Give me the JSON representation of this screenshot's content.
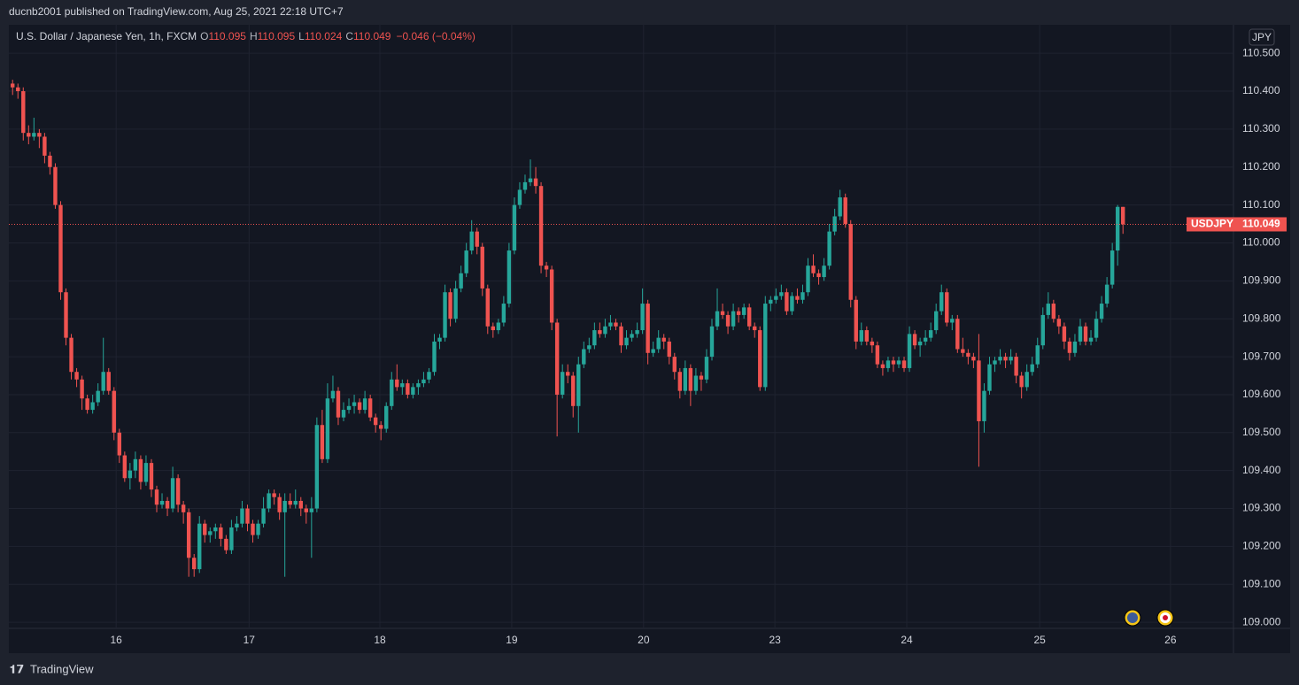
{
  "publisher": "ducnb2001 published on TradingView.com, Aug 25, 2021 22:18 UTC+7",
  "footer": "TradingView",
  "chart_data": {
    "type": "candlestick",
    "title": "U.S. Dollar / Japanese Yen, 1h, FXCM",
    "symbol": "USDJPY",
    "currency": "JPY",
    "ohlc_letters": [
      "O",
      "H",
      "L",
      "C"
    ],
    "change": "−0.046 (−0.04%)",
    "up_color": "#26a69a",
    "down_color": "#ef5350",
    "grid": true,
    "ylim": [
      108.984,
      110.575
    ],
    "yticks": [
      {
        "value": 109.0,
        "label": "109.000"
      },
      {
        "value": 109.1,
        "label": "109.100"
      },
      {
        "value": 109.2,
        "label": "109.200"
      },
      {
        "value": 109.3,
        "label": "109.300"
      },
      {
        "value": 109.4,
        "label": "109.400"
      },
      {
        "value": 109.5,
        "label": "109.500"
      },
      {
        "value": 109.6,
        "label": "109.600"
      },
      {
        "value": 109.7,
        "label": "109.700"
      },
      {
        "value": 109.8,
        "label": "109.800"
      },
      {
        "value": 109.9,
        "label": "109.900"
      },
      {
        "value": 110.0,
        "label": "110.000"
      },
      {
        "value": 110.1,
        "label": "110.100"
      },
      {
        "value": 110.2,
        "label": "110.200"
      },
      {
        "value": 110.3,
        "label": "110.300"
      },
      {
        "value": 110.4,
        "label": "110.400"
      },
      {
        "value": 110.5,
        "label": "110.500"
      }
    ],
    "xlim": [
      -0.7,
      228.7
    ],
    "xticks": [
      {
        "value": 19.4,
        "label": "16"
      },
      {
        "value": 44.3,
        "label": "17"
      },
      {
        "value": 68.8,
        "label": "18"
      },
      {
        "value": 93.5,
        "label": "19"
      },
      {
        "value": 118.2,
        "label": "20"
      },
      {
        "value": 142.8,
        "label": "23"
      },
      {
        "value": 167.5,
        "label": "24"
      },
      {
        "value": 192.4,
        "label": "25"
      },
      {
        "value": 216.9,
        "label": "26"
      }
    ],
    "candles": [
      [
        110.42,
        110.43,
        110.39,
        110.41
      ],
      [
        110.41,
        110.42,
        110.38,
        110.4
      ],
      [
        110.4,
        110.41,
        110.27,
        110.29
      ],
      [
        110.29,
        110.31,
        110.26,
        110.28
      ],
      [
        110.28,
        110.33,
        110.27,
        110.29
      ],
      [
        110.29,
        110.3,
        110.25,
        110.28
      ],
      [
        110.28,
        110.29,
        110.21,
        110.23
      ],
      [
        110.23,
        110.24,
        110.18,
        110.2
      ],
      [
        110.2,
        110.21,
        110.09,
        110.1
      ],
      [
        110.1,
        110.11,
        109.85,
        109.87
      ],
      [
        109.87,
        109.88,
        109.73,
        109.75
      ],
      [
        109.75,
        109.76,
        109.64,
        109.66
      ],
      [
        109.66,
        109.67,
        109.62,
        109.64
      ],
      [
        109.64,
        109.65,
        109.56,
        109.59
      ],
      [
        109.59,
        109.6,
        109.55,
        109.56
      ],
      [
        109.56,
        109.6,
        109.55,
        109.58
      ],
      [
        109.58,
        109.63,
        109.57,
        109.61
      ],
      [
        109.61,
        109.75,
        109.6,
        109.66
      ],
      [
        109.66,
        109.67,
        109.6,
        109.61
      ],
      [
        109.61,
        109.62,
        109.48,
        109.5
      ],
      [
        109.5,
        109.51,
        109.42,
        109.44
      ],
      [
        109.44,
        109.45,
        109.37,
        109.38
      ],
      [
        109.38,
        109.42,
        109.35,
        109.4
      ],
      [
        109.4,
        109.45,
        109.38,
        109.43
      ],
      [
        109.43,
        109.44,
        109.35,
        109.37
      ],
      [
        109.37,
        109.44,
        109.36,
        109.42
      ],
      [
        109.42,
        109.43,
        109.33,
        109.35
      ],
      [
        109.35,
        109.36,
        109.29,
        109.31
      ],
      [
        109.31,
        109.34,
        109.3,
        109.32
      ],
      [
        109.32,
        109.33,
        109.28,
        109.3
      ],
      [
        109.3,
        109.41,
        109.29,
        109.38
      ],
      [
        109.38,
        109.39,
        109.29,
        109.31
      ],
      [
        109.31,
        109.32,
        109.26,
        109.29
      ],
      [
        109.29,
        109.3,
        109.12,
        109.17
      ],
      [
        109.17,
        109.18,
        109.12,
        109.14
      ],
      [
        109.14,
        109.28,
        109.13,
        109.26
      ],
      [
        109.26,
        109.27,
        109.21,
        109.23
      ],
      [
        109.23,
        109.25,
        109.21,
        109.24
      ],
      [
        109.24,
        109.26,
        109.22,
        109.25
      ],
      [
        109.25,
        109.26,
        109.2,
        109.22
      ],
      [
        109.22,
        109.23,
        109.18,
        109.19
      ],
      [
        109.19,
        109.27,
        109.18,
        109.25
      ],
      [
        109.25,
        109.28,
        109.24,
        109.26
      ],
      [
        109.26,
        109.32,
        109.25,
        109.3
      ],
      [
        109.3,
        109.31,
        109.24,
        109.26
      ],
      [
        109.26,
        109.27,
        109.21,
        109.23
      ],
      [
        109.23,
        109.27,
        109.22,
        109.26
      ],
      [
        109.26,
        109.33,
        109.25,
        109.3
      ],
      [
        109.3,
        109.35,
        109.29,
        109.34
      ],
      [
        109.34,
        109.35,
        109.31,
        109.33
      ],
      [
        109.33,
        109.34,
        109.27,
        109.29
      ],
      [
        109.29,
        109.34,
        109.12,
        109.32
      ],
      [
        109.32,
        109.34,
        109.3,
        109.31
      ],
      [
        109.31,
        109.35,
        109.3,
        109.32
      ],
      [
        109.32,
        109.33,
        109.28,
        109.3
      ],
      [
        109.3,
        109.31,
        109.26,
        109.29
      ],
      [
        109.29,
        109.33,
        109.17,
        109.3
      ],
      [
        109.3,
        109.54,
        109.29,
        109.52
      ],
      [
        109.52,
        109.56,
        109.42,
        109.43
      ],
      [
        109.43,
        109.63,
        109.42,
        109.59
      ],
      [
        109.59,
        109.65,
        109.58,
        109.61
      ],
      [
        109.61,
        109.62,
        109.52,
        109.54
      ],
      [
        109.54,
        109.58,
        109.53,
        109.56
      ],
      [
        109.56,
        109.59,
        109.55,
        109.57
      ],
      [
        109.57,
        109.6,
        109.55,
        109.58
      ],
      [
        109.58,
        109.59,
        109.55,
        109.56
      ],
      [
        109.56,
        109.61,
        109.55,
        109.59
      ],
      [
        109.59,
        109.6,
        109.53,
        109.54
      ],
      [
        109.54,
        109.55,
        109.5,
        109.52
      ],
      [
        109.52,
        109.53,
        109.48,
        109.51
      ],
      [
        109.51,
        109.58,
        109.5,
        109.57
      ],
      [
        109.57,
        109.66,
        109.56,
        109.64
      ],
      [
        109.64,
        109.68,
        109.61,
        109.62
      ],
      [
        109.62,
        109.64,
        109.6,
        109.63
      ],
      [
        109.63,
        109.64,
        109.59,
        109.6
      ],
      [
        109.6,
        109.63,
        109.59,
        109.62
      ],
      [
        109.62,
        109.64,
        109.6,
        109.63
      ],
      [
        109.63,
        109.66,
        109.62,
        109.64
      ],
      [
        109.64,
        109.67,
        109.63,
        109.66
      ],
      [
        109.66,
        109.76,
        109.65,
        109.74
      ],
      [
        109.74,
        109.76,
        109.72,
        109.75
      ],
      [
        109.75,
        109.89,
        109.74,
        109.87
      ],
      [
        109.87,
        109.88,
        109.78,
        109.8
      ],
      [
        109.8,
        109.9,
        109.79,
        109.88
      ],
      [
        109.88,
        109.94,
        109.87,
        109.92
      ],
      [
        109.92,
        110.0,
        109.91,
        109.98
      ],
      [
        109.98,
        110.06,
        109.97,
        110.03
      ],
      [
        110.03,
        110.04,
        109.97,
        109.99
      ],
      [
        109.99,
        110.0,
        109.86,
        109.88
      ],
      [
        109.88,
        109.89,
        109.76,
        109.78
      ],
      [
        109.78,
        109.79,
        109.75,
        109.77
      ],
      [
        109.77,
        109.8,
        109.76,
        109.79
      ],
      [
        109.79,
        109.86,
        109.78,
        109.84
      ],
      [
        109.84,
        110.0,
        109.83,
        109.98
      ],
      [
        109.98,
        110.12,
        109.97,
        110.1
      ],
      [
        110.1,
        110.16,
        110.09,
        110.14
      ],
      [
        110.14,
        110.18,
        110.13,
        110.16
      ],
      [
        110.16,
        110.22,
        110.15,
        110.17
      ],
      [
        110.17,
        110.2,
        110.13,
        110.15
      ],
      [
        110.15,
        110.16,
        109.92,
        109.94
      ],
      [
        109.94,
        109.95,
        109.91,
        109.93
      ],
      [
        109.93,
        109.94,
        109.77,
        109.79
      ],
      [
        109.79,
        109.8,
        109.49,
        109.6
      ],
      [
        109.6,
        109.68,
        109.59,
        109.66
      ],
      [
        109.66,
        109.68,
        109.63,
        109.65
      ],
      [
        109.65,
        109.66,
        109.54,
        109.57
      ],
      [
        109.57,
        109.7,
        109.5,
        109.68
      ],
      [
        109.68,
        109.74,
        109.67,
        109.72
      ],
      [
        109.72,
        109.75,
        109.71,
        109.73
      ],
      [
        109.73,
        109.79,
        109.72,
        109.77
      ],
      [
        109.77,
        109.79,
        109.75,
        109.76
      ],
      [
        109.76,
        109.8,
        109.75,
        109.78
      ],
      [
        109.78,
        109.81,
        109.77,
        109.79
      ],
      [
        109.79,
        109.8,
        109.77,
        109.78
      ],
      [
        109.78,
        109.79,
        109.71,
        109.73
      ],
      [
        109.73,
        109.77,
        109.72,
        109.75
      ],
      [
        109.75,
        109.77,
        109.74,
        109.76
      ],
      [
        109.76,
        109.79,
        109.75,
        109.77
      ],
      [
        109.77,
        109.88,
        109.76,
        109.84
      ],
      [
        109.84,
        109.85,
        109.68,
        109.71
      ],
      [
        109.71,
        109.74,
        109.7,
        109.72
      ],
      [
        109.72,
        109.77,
        109.71,
        109.75
      ],
      [
        109.75,
        109.76,
        109.72,
        109.74
      ],
      [
        109.74,
        109.75,
        109.68,
        109.7
      ],
      [
        109.7,
        109.71,
        109.64,
        109.66
      ],
      [
        109.66,
        109.67,
        109.59,
        109.61
      ],
      [
        109.61,
        109.69,
        109.6,
        109.67
      ],
      [
        109.67,
        109.68,
        109.57,
        109.61
      ],
      [
        109.61,
        109.67,
        109.6,
        109.65
      ],
      [
        109.65,
        109.66,
        109.61,
        109.64
      ],
      [
        109.64,
        109.72,
        109.63,
        109.7
      ],
      [
        109.7,
        109.8,
        109.69,
        109.78
      ],
      [
        109.78,
        109.88,
        109.77,
        109.82
      ],
      [
        109.82,
        109.84,
        109.8,
        109.81
      ],
      [
        109.81,
        109.82,
        109.76,
        109.78
      ],
      [
        109.78,
        109.84,
        109.77,
        109.82
      ],
      [
        109.82,
        109.83,
        109.79,
        109.81
      ],
      [
        109.81,
        109.84,
        109.8,
        109.83
      ],
      [
        109.83,
        109.84,
        109.77,
        109.78
      ],
      [
        109.78,
        109.79,
        109.75,
        109.77
      ],
      [
        109.77,
        109.78,
        109.61,
        109.62
      ],
      [
        109.62,
        109.86,
        109.61,
        109.84
      ],
      [
        109.84,
        109.86,
        109.82,
        109.85
      ],
      [
        109.85,
        109.88,
        109.84,
        109.86
      ],
      [
        109.86,
        109.89,
        109.85,
        109.87
      ],
      [
        109.87,
        109.88,
        109.81,
        109.82
      ],
      [
        109.82,
        109.87,
        109.81,
        109.86
      ],
      [
        109.86,
        109.88,
        109.84,
        109.85
      ],
      [
        109.85,
        109.89,
        109.84,
        109.87
      ],
      [
        109.87,
        109.96,
        109.86,
        109.94
      ],
      [
        109.94,
        109.97,
        109.91,
        109.92
      ],
      [
        109.92,
        109.93,
        109.89,
        109.91
      ],
      [
        109.91,
        109.96,
        109.9,
        109.94
      ],
      [
        109.94,
        110.05,
        109.93,
        110.03
      ],
      [
        110.03,
        110.09,
        110.02,
        110.07
      ],
      [
        110.07,
        110.14,
        110.06,
        110.12
      ],
      [
        110.12,
        110.13,
        110.04,
        110.05
      ],
      [
        110.05,
        110.06,
        109.83,
        109.85
      ],
      [
        109.85,
        109.86,
        109.72,
        109.74
      ],
      [
        109.74,
        109.79,
        109.73,
        109.77
      ],
      [
        109.77,
        109.78,
        109.73,
        109.74
      ],
      [
        109.74,
        109.75,
        109.71,
        109.73
      ],
      [
        109.73,
        109.74,
        109.67,
        109.68
      ],
      [
        109.68,
        109.69,
        109.65,
        109.67
      ],
      [
        109.67,
        109.7,
        109.66,
        109.69
      ],
      [
        109.69,
        109.7,
        109.66,
        109.68
      ],
      [
        109.68,
        109.7,
        109.67,
        109.69
      ],
      [
        109.69,
        109.7,
        109.66,
        109.67
      ],
      [
        109.67,
        109.78,
        109.66,
        109.76
      ],
      [
        109.76,
        109.77,
        109.72,
        109.73
      ],
      [
        109.73,
        109.75,
        109.7,
        109.74
      ],
      [
        109.74,
        109.77,
        109.73,
        109.75
      ],
      [
        109.75,
        109.79,
        109.74,
        109.77
      ],
      [
        109.77,
        109.84,
        109.76,
        109.82
      ],
      [
        109.82,
        109.89,
        109.81,
        109.87
      ],
      [
        109.87,
        109.88,
        109.78,
        109.79
      ],
      [
        109.79,
        109.81,
        109.77,
        109.8
      ],
      [
        109.8,
        109.81,
        109.71,
        109.72
      ],
      [
        109.72,
        109.75,
        109.7,
        109.71
      ],
      [
        109.71,
        109.72,
        109.68,
        109.7
      ],
      [
        109.7,
        109.71,
        109.67,
        109.69
      ],
      [
        109.69,
        109.76,
        109.41,
        109.53
      ],
      [
        109.53,
        109.63,
        109.5,
        109.61
      ],
      [
        109.61,
        109.7,
        109.6,
        109.68
      ],
      [
        109.68,
        109.7,
        109.66,
        109.69
      ],
      [
        109.69,
        109.72,
        109.68,
        109.7
      ],
      [
        109.7,
        109.71,
        109.67,
        109.69
      ],
      [
        109.69,
        109.72,
        109.68,
        109.7
      ],
      [
        109.7,
        109.71,
        109.63,
        109.65
      ],
      [
        109.65,
        109.66,
        109.59,
        109.62
      ],
      [
        109.62,
        109.68,
        109.61,
        109.66
      ],
      [
        109.66,
        109.7,
        109.65,
        109.68
      ],
      [
        109.68,
        109.75,
        109.67,
        109.73
      ],
      [
        109.73,
        109.83,
        109.72,
        109.81
      ],
      [
        109.81,
        109.87,
        109.8,
        109.84
      ],
      [
        109.84,
        109.85,
        109.79,
        109.8
      ],
      [
        109.8,
        109.81,
        109.76,
        109.78
      ],
      [
        109.78,
        109.79,
        109.72,
        109.74
      ],
      [
        109.74,
        109.75,
        109.69,
        109.71
      ],
      [
        109.71,
        109.76,
        109.7,
        109.74
      ],
      [
        109.74,
        109.8,
        109.73,
        109.78
      ],
      [
        109.78,
        109.79,
        109.73,
        109.74
      ],
      [
        109.74,
        109.77,
        109.73,
        109.75
      ],
      [
        109.75,
        109.82,
        109.74,
        109.8
      ],
      [
        109.8,
        109.86,
        109.79,
        109.84
      ],
      [
        109.84,
        109.91,
        109.83,
        109.89
      ],
      [
        109.89,
        110.0,
        109.88,
        109.98
      ],
      [
        109.98,
        110.1,
        109.94,
        110.095
      ],
      [
        110.095,
        110.095,
        110.024,
        110.049
      ]
    ]
  }
}
